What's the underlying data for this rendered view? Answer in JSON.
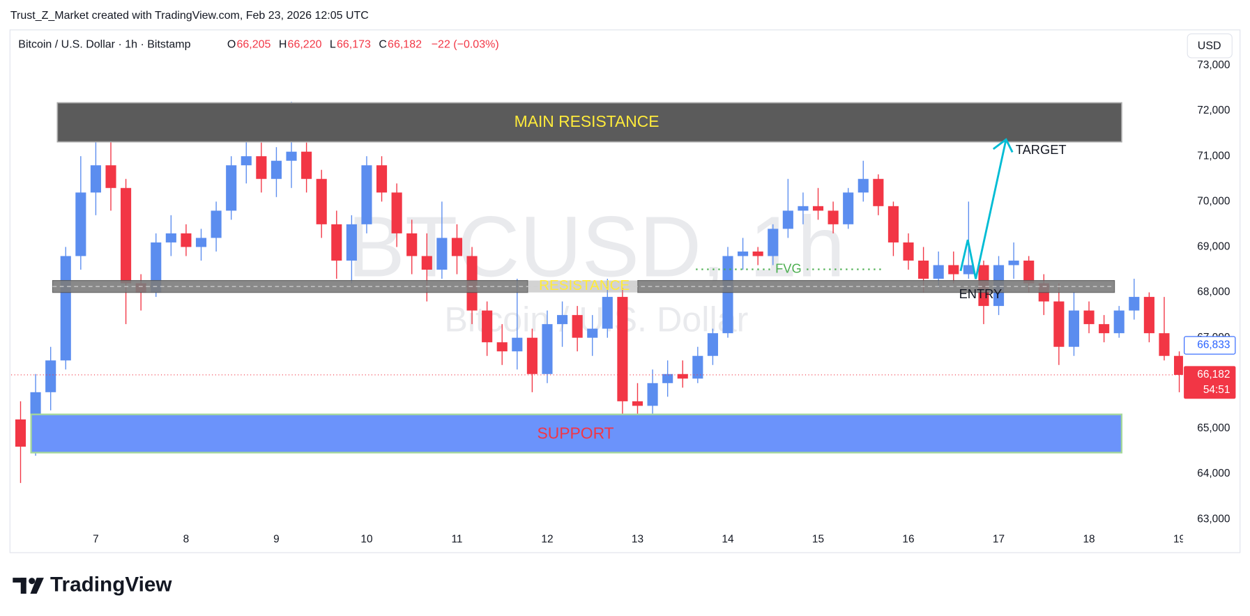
{
  "header": "Trust_Z_Market created with TradingView.com, Feb 23, 2026 12:05 UTC",
  "footer_logo": "TradingView",
  "chart_data": {
    "type": "candlestick",
    "title": "Bitcoin / U.S. Dollar · 1h · Bitstamp",
    "ohlc_legend": [
      {
        "key": "O",
        "value": 66205,
        "label": "66,205"
      },
      {
        "key": "H",
        "value": 66220,
        "label": "66,220"
      },
      {
        "key": "L",
        "value": 66173,
        "label": "66,173"
      },
      {
        "key": "C",
        "value": 66182,
        "label": "66,182"
      }
    ],
    "change": "−22 (−0.03%)",
    "currency": "USD",
    "watermark": "BTCUSD, 1h",
    "watermark_subtitle": "Bitcoin / U.S. Dollar",
    "up_color": "#5b8def",
    "down_color": "#f23645",
    "x": [
      4,
      8,
      12,
      16,
      20,
      24,
      28,
      32,
      36,
      40,
      44,
      48,
      52,
      56,
      60,
      64,
      68,
      72,
      76,
      80,
      84,
      88,
      92,
      96,
      100,
      104,
      108,
      112,
      116,
      120,
      124,
      128,
      132,
      136,
      140,
      144,
      148,
      152,
      156,
      160,
      164,
      168,
      172,
      176,
      180,
      184,
      188,
      192,
      196,
      200,
      204,
      208,
      212,
      216,
      220,
      224,
      228,
      232,
      236,
      240,
      244,
      248,
      252,
      256,
      260,
      264,
      268,
      272,
      276,
      280,
      284,
      288,
      292,
      296,
      300,
      304,
      308,
      312
    ],
    "open": [
      65200,
      64600,
      65800,
      66500,
      68800,
      70200,
      70800,
      70300,
      68200,
      68000,
      69100,
      69300,
      69000,
      69200,
      69800,
      70800,
      71000,
      70500,
      70900,
      71100,
      70500,
      69500,
      68700,
      69500,
      70800,
      70200,
      69300,
      68800,
      68500,
      69200,
      68800,
      67600,
      66900,
      66700,
      67000,
      66200,
      67300,
      67500,
      67000,
      67200,
      67900,
      65600,
      65500,
      66000,
      66200,
      66100,
      66600,
      67100,
      68800,
      68900,
      68800,
      69400,
      69800,
      69900,
      69800,
      69500,
      70200,
      70500,
      69900,
      69100,
      68700,
      68300,
      68600,
      68400,
      68600,
      67700,
      68600,
      68700,
      68200,
      67800,
      66800,
      67600,
      67300,
      67100,
      67600,
      67900,
      67100,
      66600
    ],
    "high": [
      65600,
      66200,
      66800,
      69000,
      71000,
      71400,
      71600,
      70500,
      68400,
      69300,
      69700,
      69500,
      69400,
      70000,
      71000,
      71500,
      71300,
      71200,
      72200,
      71300,
      70700,
      69800,
      69700,
      71000,
      71000,
      70400,
      69600,
      69300,
      70000,
      69500,
      69000,
      67800,
      67300,
      68300,
      67200,
      67600,
      67800,
      67700,
      67500,
      68300,
      68100,
      66000,
      66300,
      66500,
      66500,
      66800,
      67200,
      69000,
      69200,
      69000,
      69500,
      70500,
      70200,
      70300,
      70000,
      70300,
      70900,
      70600,
      70000,
      69300,
      69000,
      68900,
      68900,
      70000,
      68700,
      68800,
      69100,
      68800,
      68400,
      68200,
      68000,
      67800,
      67500,
      67700,
      68300,
      68000,
      67900,
      66700
    ],
    "low": [
      63800,
      64400,
      65400,
      66300,
      68500,
      69700,
      69800,
      67300,
      67600,
      67900,
      68800,
      68800,
      68700,
      68900,
      69600,
      70400,
      70200,
      70100,
      70300,
      70200,
      69200,
      68300,
      68200,
      69300,
      70000,
      69000,
      68400,
      67800,
      68300,
      68400,
      67300,
      66600,
      66400,
      66300,
      65800,
      66000,
      66800,
      66700,
      66600,
      67000,
      65300,
      65100,
      65200,
      65700,
      65900,
      66000,
      66400,
      67000,
      68500,
      68600,
      68600,
      69200,
      69500,
      69600,
      69300,
      69400,
      70000,
      69700,
      68800,
      68500,
      68000,
      68100,
      68200,
      68300,
      67300,
      67500,
      68300,
      68000,
      67500,
      66400,
      66600,
      67100,
      66900,
      67000,
      67400,
      66900,
      66500,
      65800
    ],
    "close": [
      64600,
      65800,
      66500,
      68800,
      70200,
      70800,
      70300,
      68200,
      68000,
      69100,
      69300,
      69000,
      69200,
      69800,
      70800,
      71000,
      70500,
      70900,
      71100,
      70500,
      69500,
      68700,
      69500,
      70800,
      70200,
      69300,
      68800,
      68500,
      69200,
      68800,
      67600,
      66900,
      66700,
      67000,
      66200,
      67300,
      67500,
      67000,
      67200,
      67900,
      65600,
      65500,
      66000,
      66200,
      66100,
      66600,
      67100,
      68800,
      68900,
      68800,
      69400,
      69800,
      69900,
      69800,
      69500,
      70200,
      70500,
      69900,
      69100,
      68700,
      68300,
      68600,
      68400,
      68600,
      67700,
      68600,
      68700,
      68200,
      67800,
      66800,
      67600,
      67300,
      67100,
      67600,
      67900,
      67100,
      66600,
      66182
    ],
    "xlim": [
      1.5,
      313
    ],
    "xticks": [
      {
        "value": 24,
        "label": "7"
      },
      {
        "value": 48,
        "label": "8"
      },
      {
        "value": 72,
        "label": "9"
      },
      {
        "value": 96,
        "label": "10"
      },
      {
        "value": 120,
        "label": "11"
      },
      {
        "value": 144,
        "label": "12"
      },
      {
        "value": 168,
        "label": "13"
      },
      {
        "value": 192,
        "label": "14"
      },
      {
        "value": 216,
        "label": "15"
      },
      {
        "value": 240,
        "label": "16"
      },
      {
        "value": 264,
        "label": "17"
      },
      {
        "value": 288,
        "label": "18"
      },
      {
        "value": 312,
        "label": "19"
      }
    ],
    "ylim": [
      62800,
      73740
    ],
    "yticks": [
      {
        "value": 63000,
        "label": "63,000"
      },
      {
        "value": 64000,
        "label": "64,000"
      },
      {
        "value": 65000,
        "label": "65,000"
      },
      {
        "value": 66000,
        "label": "66,000"
      },
      {
        "value": 67000,
        "label": "67,000"
      },
      {
        "value": 68000,
        "label": "68,000"
      },
      {
        "value": 69000,
        "label": "69,000"
      },
      {
        "value": 70000,
        "label": "70,000"
      },
      {
        "value": 71000,
        "label": "71,000"
      },
      {
        "value": 72000,
        "label": "72,000"
      },
      {
        "value": 73000,
        "label": "73,000"
      }
    ],
    "last_price": {
      "value": 66182,
      "label": "66,182"
    },
    "countdown": "54:51",
    "marked_price": {
      "value": 66833,
      "label": "66,833"
    },
    "annotations": {
      "main_resistance": "MAIN RESISTANCE",
      "resistance": "RESISTANCE",
      "support": "SUPPORT",
      "fvg": "FVG",
      "entry": "ENTRY",
      "target": "TARGET"
    }
  }
}
